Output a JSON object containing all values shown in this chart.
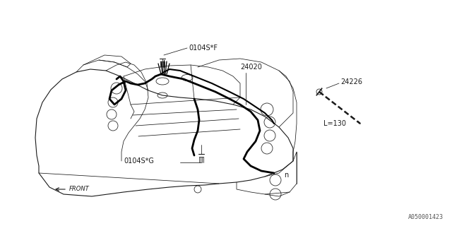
{
  "bg_color": "#ffffff",
  "line_color": "#1a1a1a",
  "thick_line_color": "#000000",
  "label_0104SF": "0104S*F",
  "label_0104SG": "0104S*G",
  "label_24020": "24020",
  "label_24226": "24226",
  "label_L130": "L=130",
  "label_FRONT": "FRONT",
  "label_ref": "A050001423",
  "fs": 7,
  "ref_fs": 6
}
